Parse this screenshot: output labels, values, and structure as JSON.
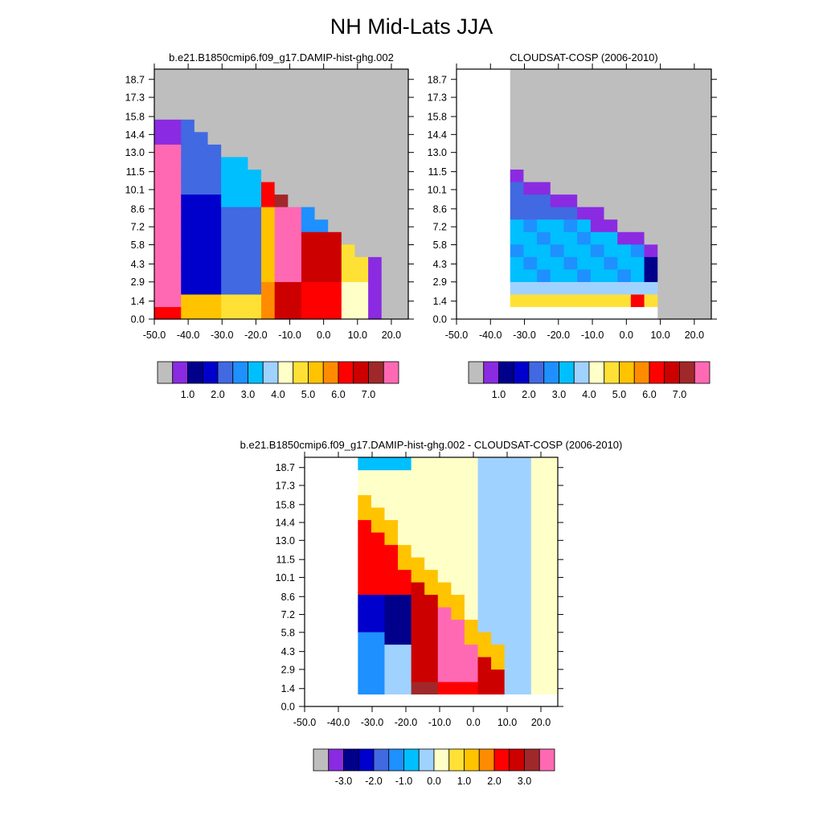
{
  "page": {
    "title": "NH Mid-Lats JJA"
  },
  "palette": [
    "#bebebe",
    "#8a2be2",
    "#00008b",
    "#0000cd",
    "#4169e1",
    "#1e90ff",
    "#00bfff",
    "#a0d2ff",
    "#ffffc8",
    "#ffe135",
    "#ffc300",
    "#ff8c00",
    "#ff0000",
    "#cd0000",
    "#a0282a",
    "#ff69b4"
  ],
  "chart_data": [
    {
      "type": "heatmap",
      "title": "b.e21.B1850cmip6.f09_g17.DAMIP-hist-ghg.002",
      "xlabel": "",
      "ylabel": "",
      "xlim": [
        -50,
        25
      ],
      "ylim": [
        0,
        19.5
      ],
      "x_ticks": [
        "-50.0",
        "-40.0",
        "-30.0",
        "-20.0",
        "-10.0",
        "0.0",
        "10.0",
        "20.0"
      ],
      "y_ticks": [
        "0.0",
        "1.4",
        "2.9",
        "4.3",
        "5.8",
        "7.2",
        "8.6",
        "10.1",
        "11.5",
        "13.0",
        "14.4",
        "15.8",
        "17.3",
        "18.7"
      ],
      "colorbar_labels": [
        "1.0",
        "2.0",
        "3.0",
        "4.0",
        "5.0",
        "6.0",
        "7.0"
      ]
    },
    {
      "type": "heatmap",
      "title": "CLOUDSAT-COSP (2006-2010)",
      "xlabel": "",
      "ylabel": "",
      "xlim": [
        -50,
        25
      ],
      "ylim": [
        0,
        19.5
      ],
      "x_ticks": [
        "-50.0",
        "-40.0",
        "-30.0",
        "-20.0",
        "-10.0",
        "0.0",
        "10.0",
        "20.0"
      ],
      "y_ticks": [
        "0.0",
        "1.4",
        "2.9",
        "4.3",
        "5.8",
        "7.2",
        "8.6",
        "10.1",
        "11.5",
        "13.0",
        "14.4",
        "15.8",
        "17.3",
        "18.7"
      ],
      "colorbar_labels": [
        "1.0",
        "2.0",
        "3.0",
        "4.0",
        "5.0",
        "6.0",
        "7.0"
      ]
    },
    {
      "type": "heatmap",
      "title": "b.e21.B1850cmip6.f09_g17.DAMIP-hist-ghg.002 - CLOUDSAT-COSP (2006-2010)",
      "xlabel": "",
      "ylabel": "",
      "xlim": [
        -50,
        25
      ],
      "ylim": [
        0,
        19.5
      ],
      "x_ticks": [
        "-50.0",
        "-40.0",
        "-30.0",
        "-20.0",
        "-10.0",
        "0.0",
        "10.0",
        "20.0"
      ],
      "y_ticks": [
        "0.0",
        "1.4",
        "2.9",
        "4.3",
        "5.8",
        "7.2",
        "8.6",
        "10.1",
        "11.5",
        "13.0",
        "14.4",
        "15.8",
        "17.3",
        "18.7"
      ],
      "colorbar_labels": [
        "-3.0",
        "-2.0",
        "-1.0",
        "0.0",
        "1.0",
        "2.0",
        "3.0"
      ]
    }
  ]
}
